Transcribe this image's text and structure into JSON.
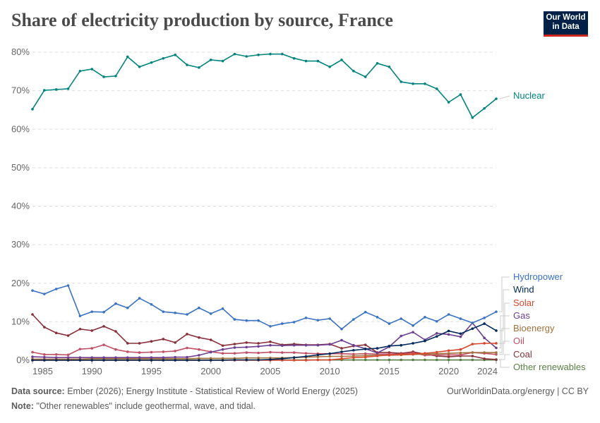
{
  "title": "Share of electricity production by source, France",
  "logo": {
    "line1": "Our World",
    "line2": "in Data"
  },
  "footer": {
    "source_label": "Data source:",
    "source": "Ember (2026); Energy Institute - Statistical Review of World Energy (2025)",
    "url": "OurWorldinData.org/energy | CC BY",
    "note_label": "Note:",
    "note": "\"Other renewables\" include geothermal, wave, and tidal."
  },
  "chart_data": {
    "type": "line",
    "title": "Share of electricity production by source, France",
    "x_ticks": [
      "1985",
      "1990",
      "1995",
      "2000",
      "2005",
      "2010",
      "2015",
      "2020",
      "2024"
    ],
    "y_ticks": [
      "0%",
      "10%",
      "20%",
      "30%",
      "40%",
      "50%",
      "60%",
      "70%",
      "80%"
    ],
    "ylim": [
      0,
      80
    ],
    "grid": "horizontal dashed",
    "legend": "right, inline labels",
    "x": [
      1985,
      1986,
      1987,
      1988,
      1989,
      1990,
      1991,
      1992,
      1993,
      1994,
      1995,
      1996,
      1997,
      1998,
      1999,
      2000,
      2001,
      2002,
      2003,
      2004,
      2005,
      2006,
      2007,
      2008,
      2009,
      2010,
      2011,
      2012,
      2013,
      2014,
      2015,
      2016,
      2017,
      2018,
      2019,
      2020,
      2021,
      2022,
      2023,
      2024
    ],
    "series": [
      {
        "name": "Nuclear",
        "color": "#00847e",
        "values": [
          65.2,
          70.1,
          70.3,
          70.5,
          75.1,
          75.6,
          73.6,
          73.8,
          78.8,
          76.2,
          77.3,
          78.4,
          79.3,
          76.7,
          76.0,
          78.0,
          77.7,
          79.5,
          78.9,
          79.3,
          79.5,
          79.5,
          78.4,
          77.7,
          77.7,
          76.2,
          78.0,
          75.1,
          73.6,
          77.1,
          76.2,
          72.3,
          71.8,
          71.8,
          70.5,
          67.0,
          69.0,
          63.0,
          65.4,
          67.9
        ]
      },
      {
        "name": "Hydropower",
        "color": "#3a72c4",
        "values": [
          18.1,
          17.2,
          18.5,
          19.4,
          11.5,
          12.6,
          12.5,
          14.7,
          13.6,
          16.1,
          14.5,
          12.6,
          12.3,
          11.9,
          13.6,
          12.1,
          13.4,
          10.6,
          10.3,
          10.3,
          8.8,
          9.5,
          9.9,
          11.0,
          10.4,
          10.8,
          8.1,
          10.6,
          12.5,
          11.2,
          9.5,
          10.8,
          9.0,
          11.2,
          10.1,
          11.9,
          10.8,
          9.7,
          11.0,
          12.6
        ]
      },
      {
        "name": "Wind",
        "color": "#00295b",
        "values": [
          0,
          0,
          0,
          0,
          0,
          0,
          0,
          0,
          0,
          0,
          0,
          0,
          0,
          0,
          0,
          0,
          0,
          0.1,
          0.1,
          0.1,
          0.2,
          0.4,
          0.7,
          1.0,
          1.4,
          1.7,
          2.2,
          2.6,
          2.9,
          3.1,
          3.7,
          3.9,
          4.4,
          5.0,
          6.2,
          7.6,
          6.9,
          8.2,
          9.5,
          7.7
        ]
      },
      {
        "name": "Solar",
        "color": "#d9472d",
        "values": [
          0,
          0,
          0,
          0,
          0,
          0,
          0,
          0,
          0,
          0,
          0,
          0,
          0,
          0,
          0,
          0,
          0,
          0,
          0,
          0,
          0,
          0,
          0,
          0,
          0.1,
          0.1,
          0.4,
          0.7,
          0.8,
          1.1,
          1.4,
          1.5,
          1.6,
          1.8,
          2.1,
          2.5,
          2.8,
          4.2,
          4.4,
          4.4
        ]
      },
      {
        "name": "Gas",
        "color": "#6d3e91",
        "values": [
          0.9,
          0.8,
          0.7,
          0.7,
          0.7,
          0.7,
          0.7,
          0.7,
          0.7,
          0.7,
          0.7,
          0.7,
          0.8,
          0.8,
          1.3,
          2.1,
          2.8,
          3.3,
          3.4,
          3.6,
          3.9,
          3.8,
          3.9,
          3.9,
          3.9,
          4.1,
          5.2,
          3.9,
          3.0,
          1.9,
          3.5,
          6.3,
          7.3,
          5.3,
          7.0,
          6.7,
          6.1,
          9.7,
          5.8,
          3.2
        ]
      },
      {
        "name": "Bioenergy",
        "color": "#a2703b",
        "values": [
          0.3,
          0.3,
          0.3,
          0.3,
          0.3,
          0.4,
          0.4,
          0.4,
          0.4,
          0.4,
          0.4,
          0.4,
          0.4,
          0.4,
          0.5,
          0.5,
          0.5,
          0.5,
          0.6,
          0.6,
          0.6,
          0.6,
          0.7,
          0.8,
          0.9,
          1.0,
          1.0,
          1.1,
          1.2,
          1.3,
          1.3,
          1.4,
          1.5,
          1.6,
          1.7,
          1.8,
          1.9,
          2.0,
          2.0,
          2.0
        ]
      },
      {
        "name": "Oil",
        "color": "#c15065",
        "values": [
          2.1,
          1.5,
          1.5,
          1.4,
          2.9,
          3.1,
          4.0,
          2.8,
          2.2,
          2.0,
          2.1,
          2.2,
          2.4,
          3.2,
          2.8,
          2.2,
          1.8,
          1.8,
          2.0,
          1.9,
          2.1,
          2.0,
          2.0,
          1.8,
          1.7,
          1.7,
          1.7,
          1.6,
          1.7,
          1.6,
          1.6,
          1.6,
          1.9,
          1.3,
          1.4,
          1.4,
          1.4,
          2.0,
          1.8,
          1.5
        ]
      },
      {
        "name": "Coal",
        "color": "#883039",
        "values": [
          11.9,
          8.6,
          7.1,
          6.4,
          8.1,
          7.7,
          8.8,
          7.5,
          4.4,
          4.4,
          4.9,
          5.5,
          4.6,
          6.8,
          5.9,
          5.3,
          3.8,
          4.2,
          4.6,
          4.4,
          4.8,
          4.0,
          4.2,
          4.0,
          4.0,
          4.2,
          3.1,
          3.7,
          4.0,
          2.0,
          2.0,
          1.8,
          2.2,
          1.6,
          1.1,
          0.9,
          1.1,
          1.1,
          0.4,
          0.2
        ]
      },
      {
        "name": "Other renewables",
        "color": "#578145",
        "values": [
          0.1,
          0.1,
          0.1,
          0.1,
          0.1,
          0.1,
          0.1,
          0.1,
          0.1,
          0.1,
          0.1,
          0.1,
          0.1,
          0.1,
          0.1,
          0.1,
          0.1,
          0.1,
          0.1,
          0.1,
          0.1,
          0.1,
          0.1,
          0.1,
          0.1,
          0.1,
          0.1,
          0.1,
          0.1,
          0.1,
          0.1,
          0.1,
          0.1,
          0.1,
          0.1,
          0.1,
          0.1,
          0.1,
          0.1,
          0.1
        ]
      }
    ]
  }
}
